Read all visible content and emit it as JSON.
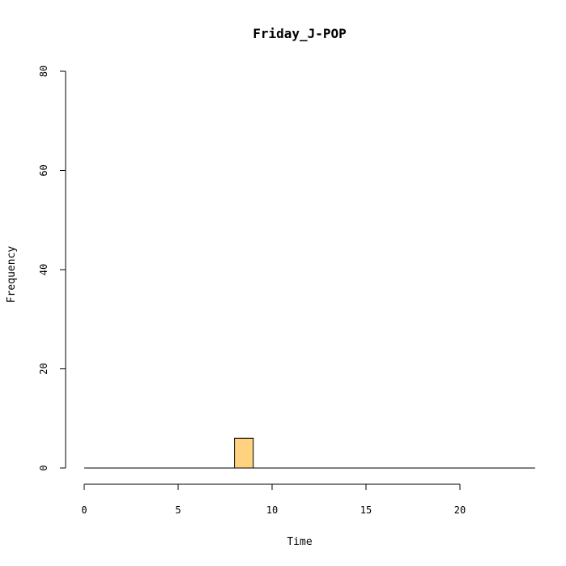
{
  "chart_data": {
    "type": "bar",
    "title": "Friday_J-POP",
    "xlabel": "Time",
    "ylabel": "Frequency",
    "bin_width": 1,
    "x_bins": [
      0,
      1,
      2,
      3,
      4,
      5,
      6,
      7,
      8,
      9,
      10,
      11,
      12,
      13,
      14,
      15,
      16,
      17,
      18,
      19,
      20,
      21,
      22,
      23
    ],
    "values": [
      0,
      0,
      0,
      0,
      0,
      0,
      0,
      0,
      6,
      0,
      0,
      0,
      0,
      0,
      0,
      0,
      0,
      0,
      0,
      0,
      0,
      0,
      0,
      0
    ],
    "xlim": [
      0,
      24
    ],
    "ylim": [
      0,
      80
    ],
    "x_ticks": [
      0,
      5,
      10,
      15,
      20
    ],
    "y_ticks": [
      0,
      20,
      40,
      60,
      80
    ],
    "x_tick_labels": [
      "0",
      "5",
      "10",
      "15",
      "20"
    ],
    "y_tick_labels": [
      "0",
      "20",
      "40",
      "60",
      "80"
    ],
    "bar_color": "#FFD280",
    "grid": false,
    "legend": "none"
  }
}
